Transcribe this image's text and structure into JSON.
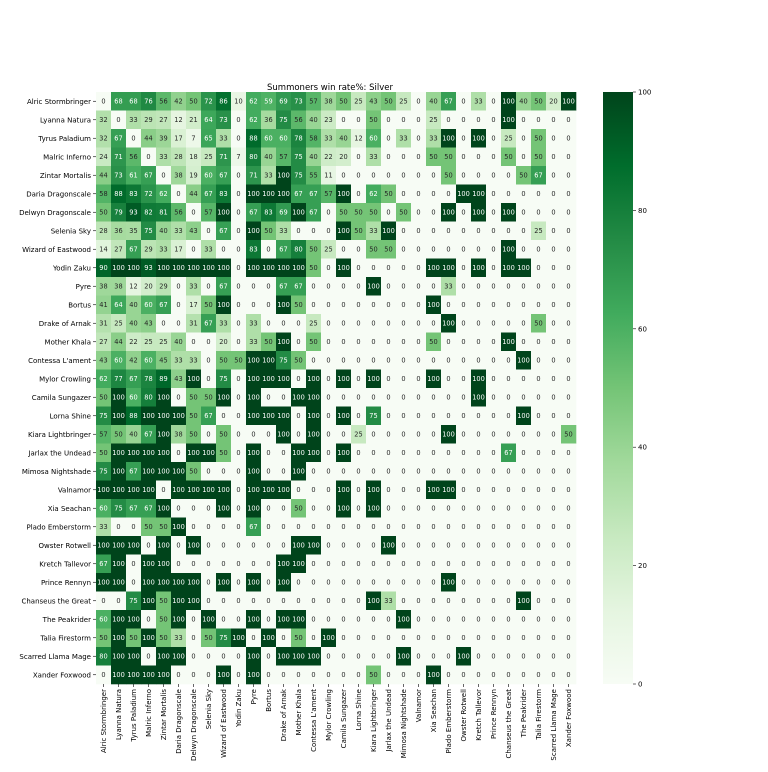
{
  "chart_data": {
    "type": "heatmap",
    "title": "Summoners win rate%: Silver",
    "xlabel": "",
    "ylabel": "",
    "categories": [
      "Alric Stormbringer",
      "Lyanna Natura",
      "Tyrus Paladium",
      "Malric Inferno",
      "Zintar Mortalis",
      "Daria Dragonscale",
      "Delwyn Dragonscale",
      "Selenia Sky",
      "Wizard of Eastwood",
      "Yodin Zaku",
      "Pyre",
      "Bortus",
      "Drake of Arnak",
      "Mother Khala",
      "Contessa L'ament",
      "Mylor Crowling",
      "Camila Sungazer",
      "Lorna Shine",
      "Kiara Lightbringer",
      "Jarlax the Undead",
      "Mimosa Nightshade",
      "Valnamor",
      "Xia Seachan",
      "Plado Emberstorm",
      "Owster Rotwell",
      "Kretch Tallevor",
      "Prince Rennyn",
      "Chanseus the Great",
      "The Peakrider",
      "Talia Firestorm",
      "Scarred Llama Mage",
      "Xander Foxwood"
    ],
    "values": [
      [
        0,
        68,
        68,
        76,
        56,
        42,
        50,
        72,
        86,
        10,
        62,
        59,
        69,
        73,
        57,
        38,
        50,
        25,
        43,
        50,
        25,
        0,
        40,
        67,
        0,
        33,
        0,
        100,
        40,
        50,
        20,
        100
      ],
      [
        32,
        0,
        33,
        29,
        27,
        12,
        21,
        64,
        73,
        0,
        62,
        36,
        75,
        56,
        40,
        23,
        0,
        0,
        50,
        0,
        0,
        0,
        25,
        0,
        0,
        0,
        0,
        100,
        0,
        0,
        0,
        0
      ],
      [
        32,
        67,
        0,
        44,
        39,
        17,
        7,
        65,
        33,
        0,
        88,
        60,
        60,
        78,
        58,
        33,
        40,
        12,
        60,
        0,
        33,
        0,
        33,
        100,
        0,
        100,
        0,
        25,
        0,
        50,
        0,
        0
      ],
      [
        24,
        71,
        56,
        0,
        33,
        28,
        18,
        25,
        71,
        7,
        80,
        40,
        57,
        75,
        40,
        22,
        20,
        0,
        33,
        0,
        0,
        0,
        50,
        50,
        0,
        0,
        0,
        50,
        0,
        50,
        0,
        0
      ],
      [
        44,
        73,
        61,
        67,
        0,
        38,
        19,
        60,
        67,
        0,
        71,
        33,
        100,
        75,
        55,
        11,
        0,
        0,
        0,
        0,
        0,
        0,
        0,
        50,
        0,
        0,
        0,
        0,
        50,
        67,
        0,
        0
      ],
      [
        58,
        88,
        83,
        72,
        62,
        0,
        44,
        67,
        83,
        0,
        100,
        100,
        100,
        67,
        67,
        57,
        100,
        0,
        62,
        50,
        0,
        0,
        0,
        0,
        100,
        100,
        0,
        0,
        0,
        0,
        0,
        0
      ],
      [
        50,
        79,
        93,
        82,
        81,
        56,
        0,
        57,
        100,
        0,
        67,
        83,
        69,
        100,
        67,
        0,
        50,
        50,
        50,
        0,
        50,
        0,
        0,
        100,
        0,
        100,
        0,
        100,
        0,
        0,
        0,
        0
      ],
      [
        28,
        36,
        35,
        75,
        40,
        33,
        43,
        0,
        67,
        0,
        100,
        50,
        33,
        0,
        0,
        0,
        100,
        50,
        33,
        100,
        0,
        0,
        0,
        0,
        0,
        0,
        0,
        0,
        0,
        25,
        0,
        0
      ],
      [
        14,
        27,
        67,
        29,
        33,
        17,
        0,
        33,
        0,
        0,
        83,
        0,
        67,
        80,
        50,
        25,
        0,
        0,
        50,
        50,
        0,
        0,
        0,
        0,
        0,
        0,
        0,
        100,
        0,
        0,
        0,
        0
      ],
      [
        90,
        100,
        100,
        93,
        100,
        100,
        100,
        100,
        100,
        0,
        100,
        100,
        100,
        100,
        50,
        0,
        100,
        0,
        0,
        0,
        0,
        0,
        100,
        100,
        0,
        100,
        0,
        100,
        100,
        0,
        0,
        0
      ],
      [
        38,
        38,
        12,
        20,
        29,
        0,
        33,
        0,
        67,
        0,
        0,
        0,
        67,
        67,
        0,
        0,
        0,
        0,
        100,
        0,
        0,
        0,
        0,
        33,
        0,
        0,
        0,
        0,
        0,
        0,
        0,
        0
      ],
      [
        41,
        64,
        40,
        60,
        67,
        0,
        17,
        50,
        100,
        0,
        0,
        0,
        100,
        50,
        0,
        0,
        0,
        0,
        0,
        0,
        0,
        0,
        100,
        0,
        0,
        0,
        0,
        0,
        0,
        0,
        0,
        0
      ],
      [
        31,
        25,
        40,
        43,
        0,
        0,
        31,
        67,
        33,
        0,
        33,
        0,
        0,
        0,
        25,
        0,
        0,
        0,
        0,
        0,
        0,
        0,
        0,
        100,
        0,
        0,
        0,
        0,
        0,
        50,
        0,
        0
      ],
      [
        27,
        44,
        22,
        25,
        25,
        40,
        0,
        0,
        20,
        0,
        33,
        50,
        100,
        0,
        50,
        0,
        0,
        0,
        0,
        0,
        0,
        0,
        50,
        0,
        0,
        0,
        0,
        100,
        0,
        0,
        0,
        0
      ],
      [
        43,
        60,
        42,
        60,
        45,
        33,
        33,
        0,
        50,
        50,
        100,
        100,
        75,
        50,
        0,
        0,
        0,
        0,
        0,
        0,
        0,
        0,
        0,
        0,
        0,
        0,
        0,
        0,
        100,
        0,
        0,
        0
      ],
      [
        62,
        77,
        67,
        78,
        89,
        43,
        100,
        0,
        75,
        0,
        100,
        100,
        100,
        0,
        100,
        0,
        100,
        0,
        100,
        0,
        0,
        0,
        100,
        0,
        0,
        100,
        0,
        0,
        0,
        0,
        0,
        0
      ],
      [
        50,
        100,
        60,
        80,
        100,
        0,
        50,
        50,
        100,
        0,
        100,
        0,
        0,
        100,
        100,
        0,
        0,
        0,
        0,
        0,
        0,
        0,
        0,
        0,
        0,
        100,
        0,
        0,
        0,
        0,
        0,
        0
      ],
      [
        75,
        100,
        88,
        100,
        100,
        100,
        50,
        67,
        0,
        0,
        100,
        100,
        100,
        0,
        100,
        0,
        100,
        0,
        75,
        0,
        0,
        0,
        0,
        0,
        0,
        0,
        0,
        0,
        100,
        0,
        0,
        0
      ],
      [
        57,
        50,
        40,
        67,
        100,
        38,
        50,
        0,
        50,
        0,
        0,
        0,
        100,
        0,
        100,
        0,
        0,
        25,
        0,
        0,
        0,
        0,
        0,
        100,
        0,
        0,
        0,
        0,
        0,
        0,
        0,
        50
      ],
      [
        50,
        100,
        100,
        100,
        100,
        0,
        100,
        100,
        50,
        0,
        100,
        0,
        0,
        100,
        100,
        0,
        100,
        0,
        0,
        0,
        0,
        0,
        0,
        0,
        0,
        0,
        0,
        67,
        0,
        0,
        0,
        0
      ],
      [
        75,
        100,
        67,
        100,
        100,
        100,
        50,
        0,
        0,
        0,
        100,
        0,
        0,
        100,
        0,
        0,
        0,
        0,
        0,
        0,
        0,
        0,
        0,
        0,
        0,
        0,
        0,
        0,
        0,
        0,
        0,
        0
      ],
      [
        100,
        100,
        100,
        100,
        0,
        100,
        100,
        100,
        100,
        0,
        100,
        100,
        100,
        0,
        0,
        0,
        100,
        0,
        100,
        0,
        0,
        0,
        100,
        100,
        0,
        0,
        0,
        0,
        0,
        0,
        0,
        0
      ],
      [
        60,
        75,
        67,
        67,
        100,
        0,
        0,
        0,
        100,
        0,
        100,
        0,
        0,
        50,
        0,
        0,
        100,
        0,
        100,
        0,
        0,
        0,
        0,
        0,
        0,
        0,
        0,
        0,
        0,
        0,
        0,
        0
      ],
      [
        33,
        0,
        0,
        50,
        50,
        100,
        0,
        0,
        0,
        0,
        67,
        0,
        0,
        0,
        0,
        0,
        0,
        0,
        0,
        0,
        0,
        0,
        0,
        0,
        0,
        0,
        0,
        0,
        0,
        0,
        0,
        0
      ],
      [
        100,
        100,
        100,
        0,
        100,
        0,
        100,
        0,
        0,
        0,
        0,
        0,
        0,
        100,
        100,
        0,
        0,
        0,
        0,
        100,
        0,
        0,
        0,
        0,
        0,
        0,
        0,
        0,
        0,
        0,
        0,
        0
      ],
      [
        67,
        100,
        0,
        100,
        100,
        0,
        0,
        0,
        0,
        0,
        0,
        0,
        100,
        100,
        0,
        0,
        0,
        0,
        0,
        0,
        0,
        0,
        0,
        0,
        0,
        0,
        0,
        0,
        0,
        0,
        0,
        0
      ],
      [
        100,
        100,
        0,
        100,
        100,
        100,
        100,
        0,
        100,
        0,
        100,
        0,
        100,
        0,
        0,
        0,
        0,
        0,
        0,
        0,
        0,
        0,
        0,
        100,
        0,
        0,
        0,
        0,
        0,
        0,
        0,
        0
      ],
      [
        0,
        0,
        75,
        100,
        50,
        100,
        100,
        0,
        0,
        0,
        0,
        0,
        0,
        0,
        0,
        0,
        0,
        0,
        100,
        33,
        0,
        0,
        0,
        0,
        0,
        0,
        0,
        0,
        100,
        0,
        0,
        0
      ],
      [
        60,
        100,
        100,
        0,
        50,
        100,
        0,
        100,
        0,
        0,
        100,
        0,
        100,
        100,
        0,
        0,
        0,
        0,
        0,
        0,
        100,
        0,
        0,
        0,
        0,
        0,
        0,
        0,
        0,
        0,
        0,
        0
      ],
      [
        50,
        100,
        50,
        100,
        50,
        33,
        0,
        50,
        75,
        100,
        0,
        100,
        0,
        50,
        0,
        100,
        0,
        0,
        0,
        0,
        0,
        0,
        0,
        0,
        0,
        0,
        0,
        0,
        0,
        0,
        0,
        0
      ],
      [
        80,
        100,
        100,
        0,
        100,
        100,
        0,
        0,
        0,
        0,
        100,
        0,
        100,
        100,
        100,
        0,
        0,
        0,
        0,
        0,
        100,
        0,
        0,
        0,
        100,
        0,
        0,
        0,
        0,
        0,
        0,
        0
      ],
      [
        0,
        100,
        100,
        100,
        100,
        0,
        0,
        0,
        100,
        0,
        100,
        0,
        0,
        0,
        0,
        0,
        0,
        0,
        50,
        0,
        0,
        0,
        100,
        0,
        0,
        0,
        0,
        0,
        0,
        0,
        0,
        0
      ]
    ],
    "vmin": 0,
    "vmax": 100,
    "colorbar_ticks": [
      0,
      20,
      40,
      60,
      80,
      100
    ],
    "colormap": [
      "#f7fcf5",
      "#e5f5e0",
      "#c7e9c0",
      "#a1d99b",
      "#74c476",
      "#41ab5d",
      "#238b45",
      "#006d2c",
      "#00441b"
    ]
  }
}
